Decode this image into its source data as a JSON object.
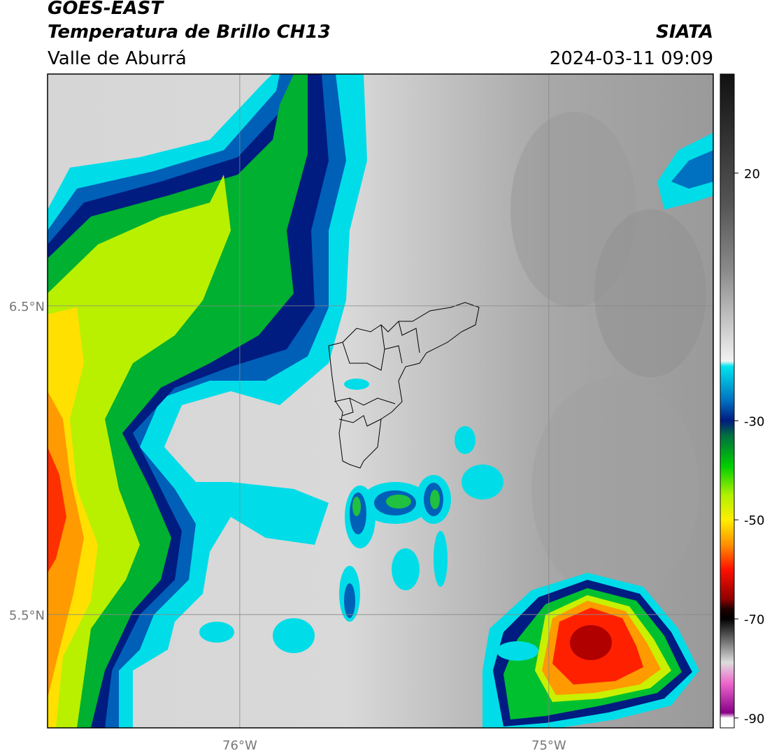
{
  "header": {
    "satellite": "GOES-EAST",
    "product": "Temperatura de Brillo CH13",
    "region": "Valle de Aburrá",
    "source": "SIATA",
    "timestamp": "2024-03-11 09:09"
  },
  "map": {
    "xlim": [
      -76.622,
      -74.468
    ],
    "ylim": [
      5.133,
      7.251
    ],
    "xticks": [
      {
        "value": -76,
        "label": "76°W"
      },
      {
        "value": -75,
        "label": "75°W"
      }
    ],
    "yticks": [
      {
        "value": 6.5,
        "label": "6.5°N"
      },
      {
        "value": 5.5,
        "label": "5.5°N"
      }
    ],
    "grid": true
  },
  "colorbar": {
    "lim": [
      -92,
      40
    ],
    "ticks": [
      20,
      -30,
      -50,
      -70,
      -90
    ]
  }
}
